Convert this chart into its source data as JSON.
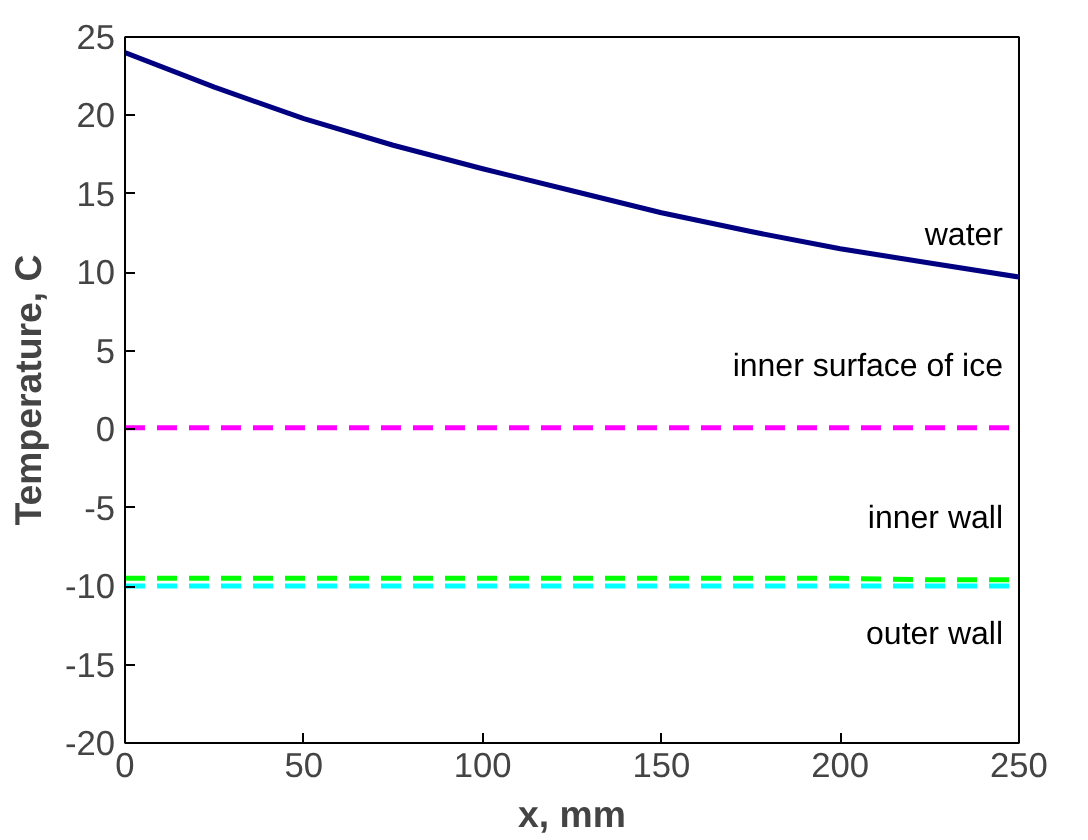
{
  "chart_data": {
    "type": "line",
    "xlabel": "x, mm",
    "ylabel": "Temperature, C",
    "xlim": [
      0,
      250
    ],
    "ylim": [
      -20,
      25
    ],
    "xticks": [
      0,
      50,
      100,
      150,
      200,
      250
    ],
    "yticks": [
      -20,
      -15,
      -10,
      -5,
      0,
      5,
      10,
      15,
      20,
      25
    ],
    "grid": false,
    "marker": "none",
    "x": [
      0,
      25,
      50,
      75,
      100,
      125,
      150,
      175,
      200,
      225,
      250
    ],
    "series": [
      {
        "name": "water",
        "color": "#000080",
        "line_style": "solid",
        "values": [
          24,
          21.8,
          19.8,
          18.1,
          16.6,
          15.2,
          13.8,
          12.6,
          11.5,
          10.6,
          9.7
        ]
      },
      {
        "name": "inner surface of ice",
        "color": "#ff00ff",
        "line_style": "dashed",
        "values": [
          0.1,
          0.1,
          0.1,
          0.1,
          0.1,
          0.1,
          0.1,
          0.1,
          0.1,
          0.1,
          0.1
        ]
      },
      {
        "name": "inner wall",
        "color": "#00ff00",
        "line_style": "dashed",
        "values": [
          -9.5,
          -9.5,
          -9.5,
          -9.5,
          -9.5,
          -9.5,
          -9.5,
          -9.5,
          -9.5,
          -9.6,
          -9.6
        ]
      },
      {
        "name": "outer wall",
        "color": "#00ffff",
        "line_style": "dashed",
        "values": [
          -10,
          -10,
          -10,
          -10,
          -10,
          -10,
          -10,
          -10,
          -10,
          -10,
          -10
        ]
      }
    ]
  }
}
